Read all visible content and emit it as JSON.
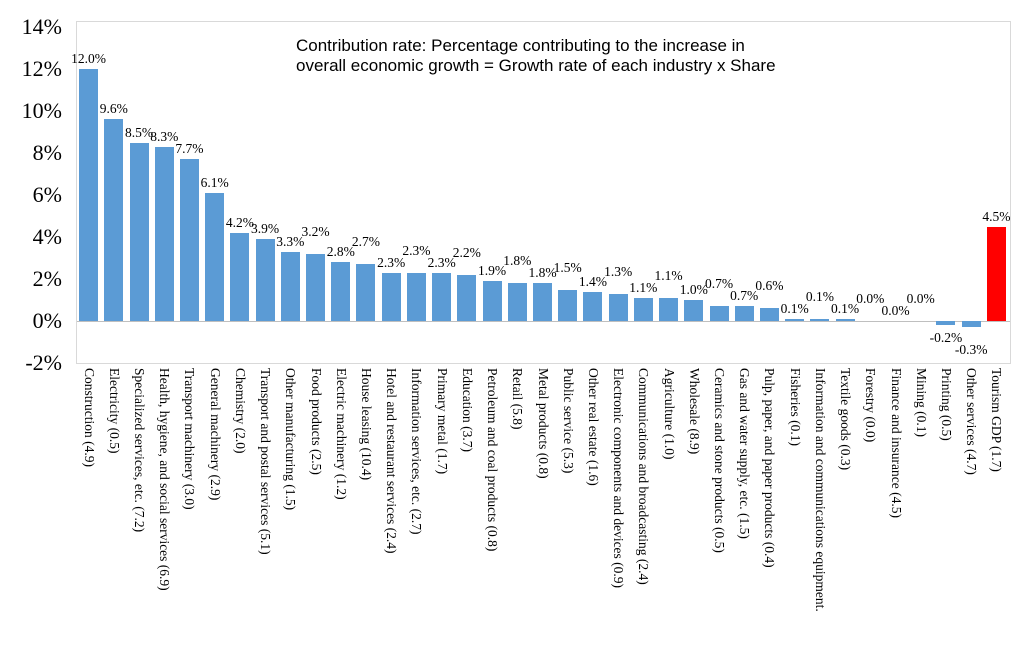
{
  "chart_data": {
    "type": "bar",
    "title": "Contribution rate: Percentage contributing to the increase in overall economic growth = Growth rate of each industry x Share",
    "title_lines": [
      "Contribution rate: Percentage contributing to the increase in",
      "overall economic growth = Growth rate of each industry x Share"
    ],
    "xlabel": "",
    "ylabel": "",
    "ylim": [
      -2,
      14
    ],
    "ytick_labels": [
      "14%",
      "12%",
      "10%",
      "8%",
      "6%",
      "4%",
      "2%",
      "0%",
      "-2%"
    ],
    "ytick_values": [
      14,
      12,
      10,
      8,
      6,
      4,
      2,
      0,
      -2
    ],
    "grid": false,
    "legend_position": "none",
    "bar_color": "#5b9bd5",
    "highlight_color": "#ff0000",
    "highlight_index": 36,
    "categories": [
      "Construction (4.9)",
      "Electricity (0.5)",
      "Specialized services, etc. (7.2)",
      "Health, hygiene, and social services (6.9)",
      "Transport machinery (3.0)",
      "General machinery (2.9)",
      "Chemistry (2.0)",
      "Transport and postal services (5.1)",
      "Other manufacturing (1.5)",
      "Food products (2.5)",
      "Electric machinery (1.2)",
      "House leasing (10.4)",
      "Hotel and restaurant services (2.4)",
      "Information services, etc. (2.7)",
      "Primary metal (1.7)",
      "Education (3.7)",
      "Petroleum and coal products (0.8)",
      "Retail (5.8)",
      "Metal products (0.8)",
      "Public service (5.3)",
      "Other real estate (1.6)",
      "Electronic components and devices (0.9)",
      "Communications and broadcasting (2.4)",
      "Agriculture (1.0)",
      "Wholesale (8.9)",
      "Ceramics and stone products (0.5)",
      "Gas and water supply, etc. (1.5)",
      "Pulp, paper, and paper products (0.4)",
      "Fisheries (0.1)",
      "Information and communications equipment.",
      "Textile goods (0.3)",
      "Forestry (0.0)",
      "Finance and insurance (4.5)",
      "Mining (0.1)",
      "Printing (0.5)",
      "Other services (4.7)",
      "Tourism GDP (1.7)"
    ],
    "values": [
      12.0,
      9.6,
      8.5,
      8.3,
      7.7,
      6.1,
      4.2,
      3.9,
      3.3,
      3.2,
      2.8,
      2.7,
      2.3,
      2.3,
      2.3,
      2.2,
      1.9,
      1.8,
      1.8,
      1.5,
      1.4,
      1.3,
      1.1,
      1.1,
      1.0,
      0.7,
      0.7,
      0.6,
      0.1,
      0.1,
      0.1,
      0.0,
      0.0,
      0.0,
      -0.2,
      -0.3,
      4.5
    ],
    "value_labels": [
      "12.0%",
      "9.6%",
      "8.5%",
      "8.3%",
      "7.7%",
      "6.1%",
      "4.2%",
      "3.9%",
      "3.3%",
      "3.2%",
      "2.8%",
      "2.7%",
      "2.3%",
      "2.3%",
      "2.3%",
      "2.2%",
      "1.9%",
      "1.8%",
      "1.8%",
      "1.5%",
      "1.4%",
      "1.3%",
      "1.1%",
      "1.1%",
      "1.0%",
      "0.7%",
      "0.7%",
      "0.6%",
      "0.1%",
      "0.1%",
      "0.1%",
      "0.0%",
      "0.0%",
      "0.0%",
      "-0.2%",
      "-0.3%",
      "4.5%"
    ]
  }
}
